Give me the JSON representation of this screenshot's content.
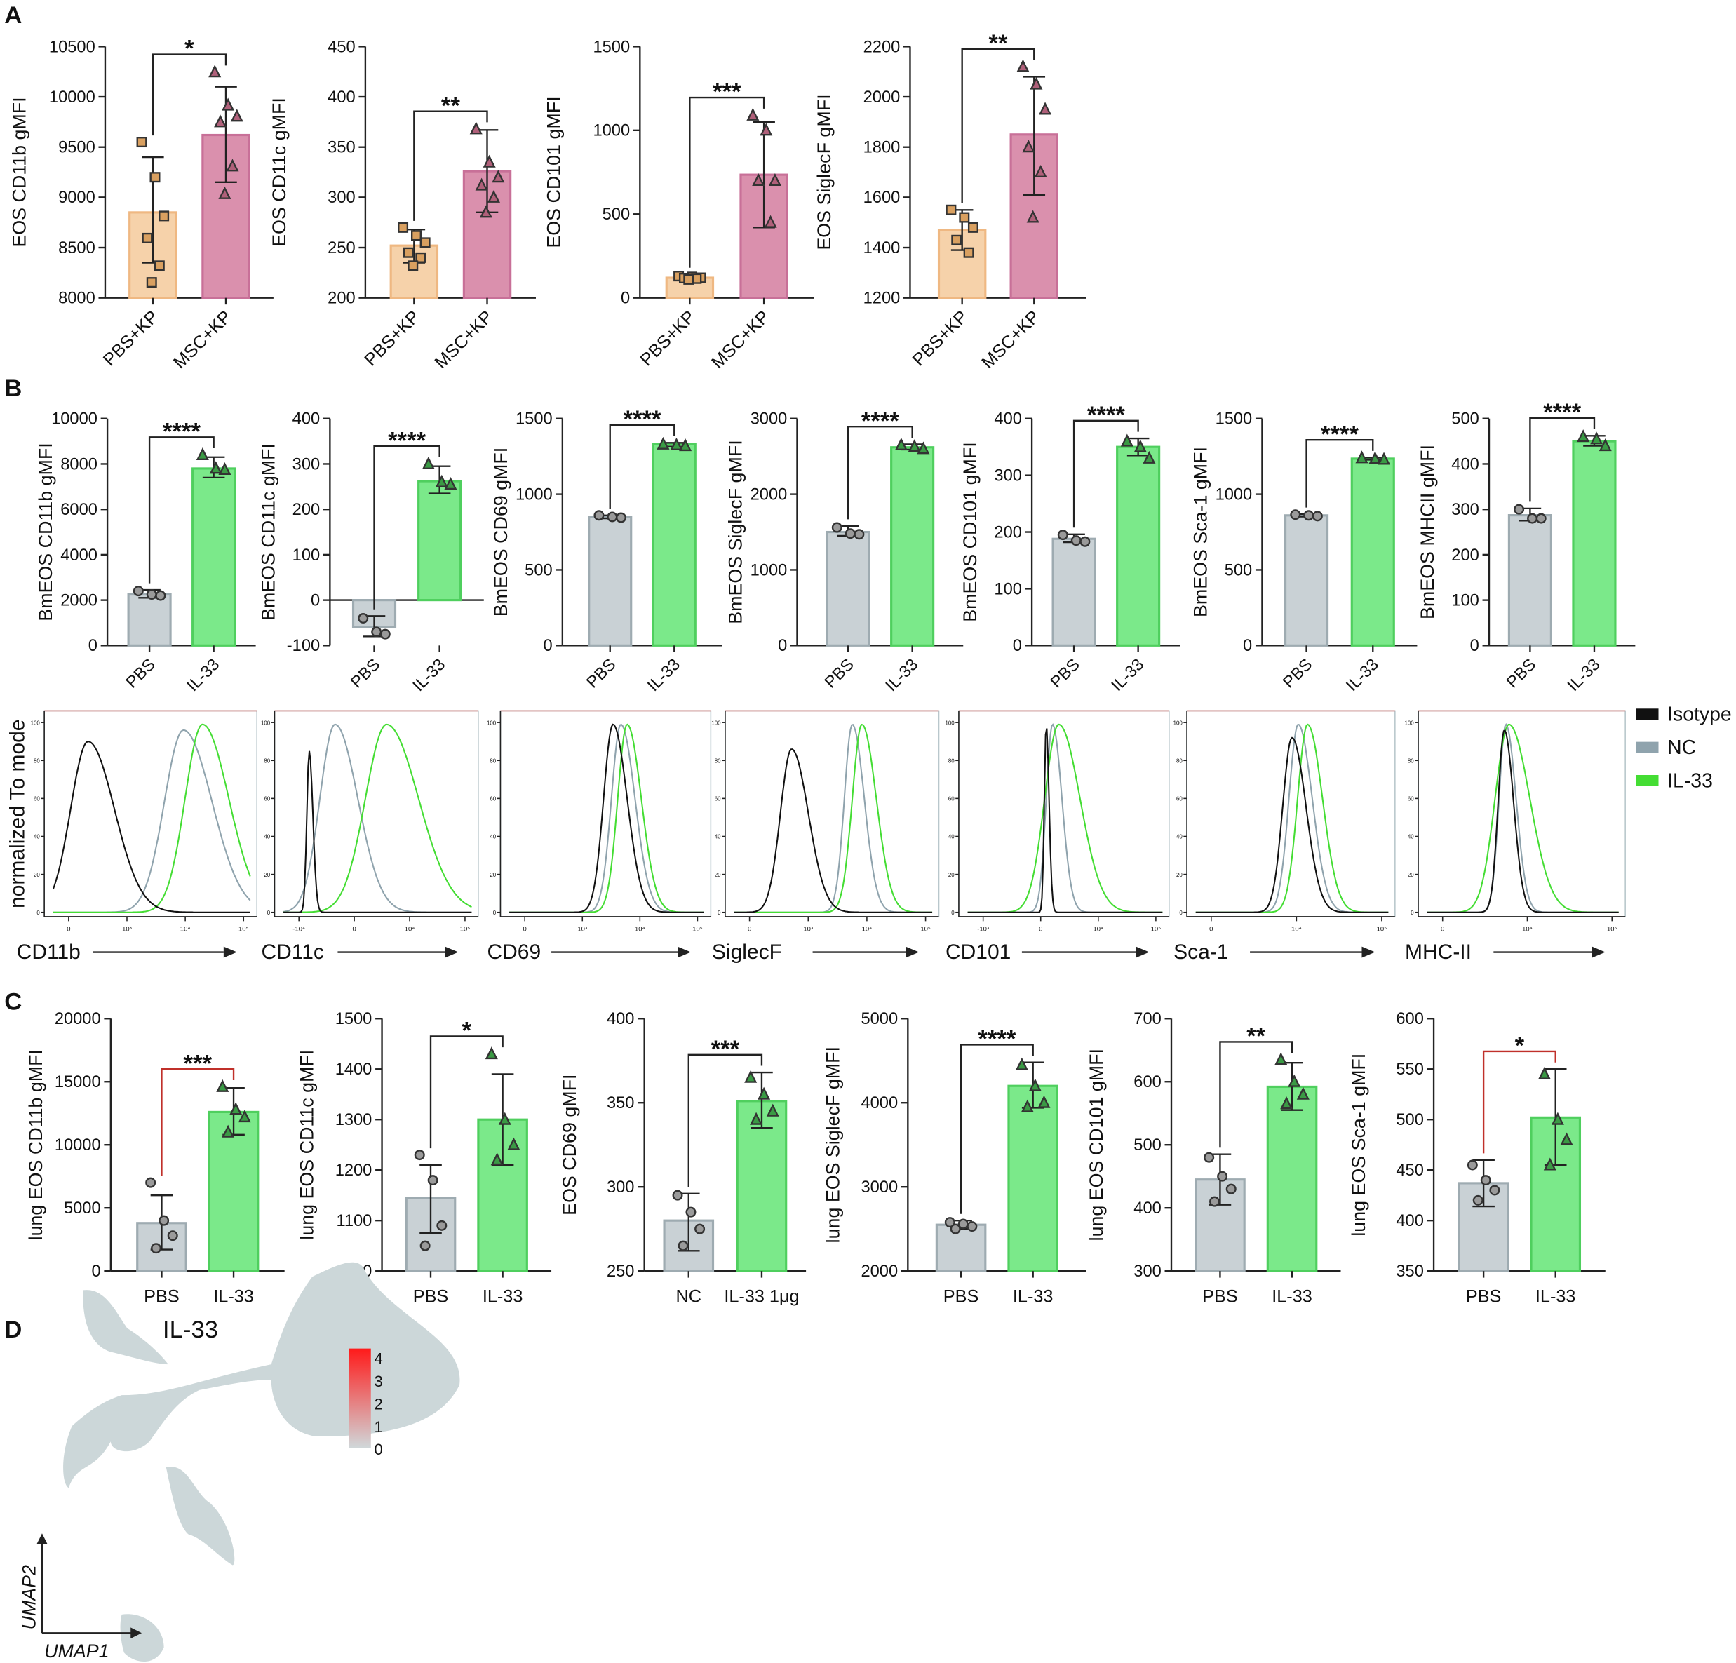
{
  "panels": {
    "a": "A",
    "b": "B",
    "c": "C",
    "d": "D"
  },
  "colors": {
    "pbs_kp_fill": "#f6d2aa",
    "pbs_kp_stroke": "#efb882",
    "pbs_kp_marker": "#d9a060",
    "msc_kp_fill": "#da90ad",
    "msc_kp_stroke": "#c87098",
    "msc_kp_marker": "#b0607a",
    "gray_fill": "#c9d1d5",
    "gray_stroke": "#9eabb1",
    "green_fill": "#7be98a",
    "green_stroke": "#4fcf5e",
    "green_marker": "#3a9a44",
    "isotype": "#111111",
    "nc": "#8fa3ad",
    "il33": "#44dd33",
    "sig_red": "#c0302a"
  },
  "chart_data": [
    {
      "id": "A1",
      "panel": "A",
      "type": "bar",
      "ylabel": "EOS CD11b gMFI",
      "ylim": [
        8000,
        10500
      ],
      "yticks": [
        8000,
        8500,
        9000,
        9500,
        10000,
        10500
      ],
      "categories": [
        "PBS+KP",
        "MSC+KP"
      ],
      "values": [
        8850,
        9620
      ],
      "errors": [
        [
          8350,
          9400
        ],
        [
          9150,
          10100
        ]
      ],
      "points": [
        [
          9550,
          9200,
          8815,
          8595,
          8320,
          8154
        ],
        [
          10246,
          9916,
          9806,
          9750,
          9310,
          9035
        ]
      ],
      "significance": "*",
      "style": "A"
    },
    {
      "id": "A2",
      "panel": "A",
      "type": "bar",
      "ylabel": "EOS CD11c gMFI",
      "ylim": [
        200,
        450
      ],
      "yticks": [
        200,
        250,
        300,
        350,
        400,
        450
      ],
      "categories": [
        "PBS+KP",
        "MSC+KP"
      ],
      "values": [
        252,
        326
      ],
      "errors": [
        [
          235,
          268
        ],
        [
          285,
          367
        ]
      ],
      "points": [
        [
          270,
          262,
          255,
          245,
          240,
          232
        ],
        [
          368,
          335,
          320,
          312,
          300,
          285
        ]
      ],
      "significance": "**",
      "style": "A"
    },
    {
      "id": "A3",
      "panel": "A",
      "type": "bar",
      "ylabel": "EOS CD101 gMFI",
      "ylim": [
        0,
        1500
      ],
      "yticks": [
        0,
        500,
        1000,
        1500
      ],
      "categories": [
        "PBS+KP",
        "MSC+KP"
      ],
      "values": [
        120,
        735
      ],
      "errors": [
        [
          105,
          140
        ],
        [
          420,
          1050
        ]
      ],
      "points": [
        [
          130,
          125,
          120,
          118,
          115,
          110
        ],
        [
          1090,
          1000,
          700,
          700,
          450
        ]
      ],
      "significance": "***",
      "style": "A"
    },
    {
      "id": "A4",
      "panel": "A",
      "type": "bar",
      "ylabel": "EOS SiglecF gMFI",
      "ylim": [
        1200,
        2200
      ],
      "yticks": [
        1200,
        1400,
        1600,
        1800,
        2000,
        2200
      ],
      "categories": [
        "PBS+KP",
        "MSC+KP"
      ],
      "values": [
        1470,
        1850
      ],
      "errors": [
        [
          1390,
          1550
        ],
        [
          1610,
          2080
        ]
      ],
      "points": [
        [
          1550,
          1520,
          1480,
          1430,
          1380
        ],
        [
          2120,
          2050,
          1950,
          1800,
          1700,
          1520
        ]
      ],
      "significance": "**",
      "style": "A"
    },
    {
      "id": "B1",
      "panel": "B",
      "type": "bar",
      "ylabel": "BmEOS CD11b gMFI",
      "ylim": [
        0,
        10000
      ],
      "yticks": [
        0,
        2000,
        4000,
        6000,
        8000,
        10000
      ],
      "categories": [
        "PBS",
        "IL-33"
      ],
      "values": [
        2250,
        7800
      ],
      "errors": [
        [
          2100,
          2450
        ],
        [
          7400,
          8300
        ]
      ],
      "points": [
        [
          2400,
          2250,
          2200
        ],
        [
          8400,
          7800,
          7750
        ]
      ],
      "significance": "****",
      "style": "B"
    },
    {
      "id": "B2",
      "panel": "B",
      "type": "bar",
      "ylabel": "BmEOS CD11c gMFI",
      "ylim": [
        -100,
        400
      ],
      "yticks": [
        -100,
        0,
        100,
        200,
        300,
        400
      ],
      "categories": [
        "PBS",
        "IL-33"
      ],
      "values": [
        -60,
        262
      ],
      "errors": [
        [
          -80,
          -35
        ],
        [
          235,
          295
        ]
      ],
      "points": [
        [
          -40,
          -70,
          -75
        ],
        [
          300,
          260,
          255
        ]
      ],
      "significance": "****",
      "style": "B",
      "baseline": 0
    },
    {
      "id": "B3",
      "panel": "B",
      "type": "bar",
      "ylabel": "BmEOS CD69 gMFI",
      "ylim": [
        0,
        1500
      ],
      "yticks": [
        0,
        500,
        1000,
        1500
      ],
      "categories": [
        "PBS",
        "IL-33"
      ],
      "values": [
        850,
        1330
      ],
      "errors": [
        [
          840,
          860
        ],
        [
          1315,
          1340
        ]
      ],
      "points": [
        [
          860,
          850,
          845
        ],
        [
          1330,
          1325,
          1320
        ]
      ],
      "significance": "****",
      "style": "B"
    },
    {
      "id": "B4",
      "panel": "B",
      "type": "bar",
      "ylabel": "BmEOS SiglecF gMFI",
      "ylim": [
        0,
        3000
      ],
      "yticks": [
        0,
        1000,
        2000,
        3000
      ],
      "categories": [
        "PBS",
        "IL-33"
      ],
      "values": [
        1500,
        2620
      ],
      "errors": [
        [
          1450,
          1580
        ],
        [
          2590,
          2660
        ]
      ],
      "points": [
        [
          1560,
          1480,
          1470
        ],
        [
          2650,
          2630,
          2600
        ]
      ],
      "significance": "****",
      "style": "B"
    },
    {
      "id": "B5",
      "panel": "B",
      "type": "bar",
      "ylabel": "BmEOS CD101 gMFI",
      "ylim": [
        0,
        400
      ],
      "yticks": [
        0,
        100,
        200,
        300,
        400
      ],
      "categories": [
        "PBS",
        "IL-33"
      ],
      "values": [
        188,
        350
      ],
      "errors": [
        [
          182,
          196
        ],
        [
          335,
          365
        ]
      ],
      "points": [
        [
          195,
          185,
          183
        ],
        [
          360,
          350,
          330
        ]
      ],
      "significance": "****",
      "style": "B"
    },
    {
      "id": "B6",
      "panel": "B",
      "type": "bar",
      "ylabel": "BmEOS Sca-1 gMFI",
      "ylim": [
        0,
        1500
      ],
      "yticks": [
        0,
        500,
        1000,
        1500
      ],
      "categories": [
        "PBS",
        "IL-33"
      ],
      "values": [
        860,
        1235
      ],
      "errors": [
        [
          852,
          868
        ],
        [
          1228,
          1242
        ]
      ],
      "points": [
        [
          865,
          860,
          855
        ],
        [
          1240,
          1235,
          1230
        ]
      ],
      "significance": "****",
      "style": "B"
    },
    {
      "id": "B7",
      "panel": "B",
      "type": "bar",
      "ylabel": "BmEOS MHCII gMFI",
      "ylim": [
        0,
        500
      ],
      "yticks": [
        0,
        100,
        200,
        300,
        400,
        500
      ],
      "categories": [
        "PBS",
        "IL-33"
      ],
      "values": [
        287,
        450
      ],
      "errors": [
        [
          275,
          302
        ],
        [
          440,
          462
        ]
      ],
      "points": [
        [
          300,
          280,
          280
        ],
        [
          460,
          455,
          440
        ]
      ],
      "significance": "****",
      "style": "B"
    },
    {
      "id": "C1",
      "panel": "C",
      "type": "bar",
      "ylabel": "lung EOS CD11b gMFI",
      "ylim": [
        0,
        20000
      ],
      "yticks": [
        0,
        5000,
        10000,
        15000,
        20000
      ],
      "categories": [
        "PBS",
        "IL-33"
      ],
      "values": [
        3800,
        12600
      ],
      "errors": [
        [
          1700,
          6000
        ],
        [
          10800,
          14500
        ]
      ],
      "points": [
        [
          7000,
          4000,
          2800,
          1800
        ],
        [
          14600,
          12800,
          12200,
          11000
        ]
      ],
      "significance": "***",
      "style": "C",
      "sig_red": true
    },
    {
      "id": "C2",
      "panel": "C",
      "type": "bar",
      "ylabel": "lung EOS CD11c gMFI",
      "ylim": [
        1000,
        1500
      ],
      "yticks": [
        1000,
        1100,
        1200,
        1300,
        1400,
        1500
      ],
      "categories": [
        "PBS",
        "IL-33"
      ],
      "values": [
        1145,
        1300
      ],
      "errors": [
        [
          1075,
          1210
        ],
        [
          1210,
          1390
        ]
      ],
      "points": [
        [
          1230,
          1180,
          1090,
          1050
        ],
        [
          1430,
          1300,
          1250,
          1220
        ]
      ],
      "significance": "*",
      "style": "C"
    },
    {
      "id": "C3",
      "panel": "C",
      "type": "bar",
      "ylabel": "EOS CD69 gMFI",
      "ylim": [
        250,
        400
      ],
      "yticks": [
        250,
        300,
        350,
        400
      ],
      "categories": [
        "NC",
        "IL-33 1μg"
      ],
      "values": [
        280,
        351
      ],
      "errors": [
        [
          262,
          296
        ],
        [
          335,
          368
        ]
      ],
      "points": [
        [
          295,
          285,
          275,
          265
        ],
        [
          365,
          355,
          345,
          340
        ]
      ],
      "significance": "***",
      "style": "C"
    },
    {
      "id": "C4",
      "panel": "C",
      "type": "bar",
      "ylabel": "lung EOS SiglecF gMFI",
      "ylim": [
        2000,
        5000
      ],
      "yticks": [
        2000,
        3000,
        4000,
        5000
      ],
      "categories": [
        "PBS",
        "IL-33"
      ],
      "values": [
        2550,
        4200
      ],
      "errors": [
        [
          2500,
          2600
        ],
        [
          3940,
          4480
        ]
      ],
      "points": [
        [
          2580,
          2560,
          2530,
          2500
        ],
        [
          4450,
          4200,
          4000,
          3950
        ]
      ],
      "significance": "****",
      "style": "C"
    },
    {
      "id": "C5",
      "panel": "C",
      "type": "bar",
      "ylabel": "lung EOS CD101 gMFI",
      "ylim": [
        300,
        700
      ],
      "yticks": [
        300,
        400,
        500,
        600,
        700
      ],
      "categories": [
        "PBS",
        "IL-33"
      ],
      "values": [
        445,
        592
      ],
      "errors": [
        [
          405,
          485
        ],
        [
          555,
          630
        ]
      ],
      "points": [
        [
          480,
          450,
          430,
          410
        ],
        [
          635,
          600,
          580,
          565
        ]
      ],
      "significance": "**",
      "style": "C"
    },
    {
      "id": "C6",
      "panel": "C",
      "type": "bar",
      "ylabel": "lung EOS Sca-1 gMFI",
      "ylim": [
        350,
        600
      ],
      "yticks": [
        350,
        400,
        450,
        500,
        550,
        600
      ],
      "categories": [
        "PBS",
        "IL-33"
      ],
      "values": [
        437,
        502
      ],
      "errors": [
        [
          414,
          460
        ],
        [
          455,
          550
        ]
      ],
      "points": [
        [
          455,
          440,
          430,
          420
        ],
        [
          545,
          500,
          480,
          455
        ]
      ],
      "significance": "*",
      "style": "C",
      "sig_red": true
    },
    {
      "id": "H",
      "panel": "B",
      "type": "histogram",
      "ylabel": "normalized To mode",
      "yticks": [
        0,
        20,
        40,
        60,
        80,
        100
      ],
      "legend": [
        "Isotype",
        "NC",
        "IL-33"
      ],
      "x_range_log10": [
        -0.8,
        5.4
      ],
      "panels": [
        {
          "marker": "CD11b",
          "xticks": [
            "0",
            "10³",
            "10⁴",
            "10⁵"
          ],
          "peaks": {
            "isotype": [
              0.3,
              0.55,
              90
            ],
            "nc": [
              3.3,
              0.6,
              96
            ],
            "il33": [
              3.9,
              0.55,
              99
            ]
          }
        },
        {
          "marker": "CD11c",
          "xticks": [
            "-10⁴",
            "0",
            "10⁴",
            "10⁵"
          ],
          "peaks": {
            "isotype": [
              0.05,
              0.08,
              85
            ],
            "nc": [
              0.9,
              0.5,
              99
            ],
            "il33": [
              2.6,
              0.7,
              99
            ]
          }
        },
        {
          "marker": "CD69",
          "xticks": [
            "0",
            "10³",
            "10⁴",
            "10⁵"
          ],
          "peaks": {
            "isotype": [
              2.5,
              0.3,
              99
            ],
            "nc": [
              2.75,
              0.3,
              99
            ],
            "il33": [
              2.95,
              0.3,
              99
            ]
          }
        },
        {
          "marker": "SiglecF",
          "xticks": [
            "0",
            "10³",
            "10⁴",
            "10⁵"
          ],
          "peaks": {
            "isotype": [
              1.0,
              0.35,
              86
            ],
            "nc": [
              2.9,
              0.25,
              99
            ],
            "il33": [
              3.2,
              0.3,
              99
            ]
          }
        },
        {
          "marker": "CD101",
          "xticks": [
            "-10³",
            "0",
            "10⁴",
            "10⁵"
          ],
          "peaks": {
            "isotype": [
              1.7,
              0.06,
              99
            ],
            "nc": [
              1.9,
              0.2,
              99
            ],
            "il33": [
              2.1,
              0.45,
              99
            ]
          }
        },
        {
          "marker": "Sca-1",
          "xticks": [
            "0",
            "10⁴",
            "10⁵"
          ],
          "peaks": {
            "isotype": [
              2.3,
              0.3,
              92
            ],
            "nc": [
              2.5,
              0.3,
              99
            ],
            "il33": [
              2.8,
              0.32,
              99
            ]
          }
        },
        {
          "marker": "MHC-II",
          "xticks": [
            "0",
            "10⁴",
            "10⁵"
          ],
          "peaks": {
            "isotype": [
              1.7,
              0.2,
              96
            ],
            "nc": [
              1.75,
              0.22,
              99
            ],
            "il33": [
              1.85,
              0.45,
              99
            ]
          }
        }
      ]
    },
    {
      "id": "D",
      "panel": "D",
      "type": "umap",
      "title": "IL-33",
      "colorbar_ticks": [
        "0",
        "1",
        "2",
        "3",
        "4"
      ],
      "colorbar_range": [
        0,
        4
      ],
      "xlabel": "UMAP1",
      "ylabel": "UMAP2"
    }
  ]
}
